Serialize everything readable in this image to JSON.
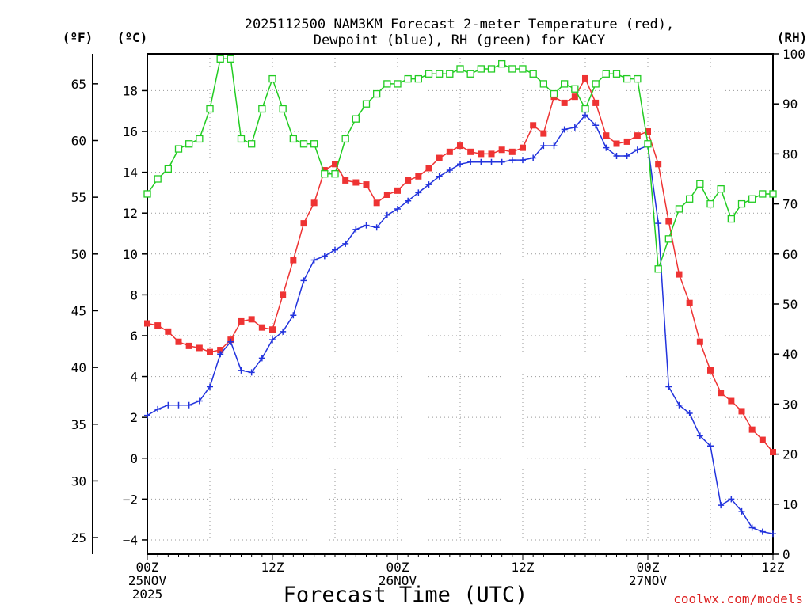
{
  "chart_data": {
    "type": "line",
    "title_line1": "2025112500 NAM3KM Forecast 2-meter Temperature (red),",
    "title_line2": "Dewpoint (blue), RH (green) for KACY",
    "unit_f": "(ºF)",
    "unit_c": "(ºC)",
    "unit_rh": "(RH)",
    "xlabel": "Forecast Time (UTC)",
    "credit": "coolwx.com/models",
    "xlim": [
      0,
      60
    ],
    "ylim_c": [
      -4.7,
      19.8
    ],
    "ylim_rh": [
      0,
      100
    ],
    "x_ticks": [
      {
        "x": 0,
        "lines": [
          "00Z",
          "25NOV",
          "2025"
        ]
      },
      {
        "x": 12,
        "lines": [
          "12Z"
        ]
      },
      {
        "x": 24,
        "lines": [
          "00Z",
          "26NOV"
        ]
      },
      {
        "x": 36,
        "lines": [
          "12Z"
        ]
      },
      {
        "x": 48,
        "lines": [
          "00Z",
          "27NOV"
        ]
      },
      {
        "x": 60,
        "lines": [
          "12Z"
        ]
      }
    ],
    "c_ticks": [
      -4,
      -2,
      0,
      2,
      4,
      6,
      8,
      10,
      12,
      14,
      16,
      18
    ],
    "f_ticks": [
      25,
      30,
      35,
      40,
      45,
      50,
      55,
      60,
      65
    ],
    "rh_ticks": [
      0,
      10,
      20,
      30,
      40,
      50,
      60,
      70,
      80,
      90,
      100
    ],
    "series": [
      {
        "name": "Temperature",
        "unit": "C",
        "color": "#ee3333",
        "marker": "filled-square",
        "x": [
          0,
          1,
          2,
          3,
          4,
          5,
          6,
          7,
          8,
          9,
          10,
          11,
          12,
          13,
          14,
          15,
          16,
          17,
          18,
          19,
          20,
          21,
          22,
          23,
          24,
          25,
          26,
          27,
          28,
          29,
          30,
          31,
          32,
          33,
          34,
          35,
          36,
          37,
          38,
          39,
          40,
          41,
          42,
          43,
          44,
          45,
          46,
          47,
          48,
          49,
          50,
          51,
          52,
          53,
          54,
          55,
          56,
          57,
          58,
          59,
          60
        ],
        "values": [
          6.6,
          6.5,
          6.2,
          5.7,
          5.5,
          5.4,
          5.2,
          5.3,
          5.8,
          6.7,
          6.8,
          6.4,
          6.3,
          8.0,
          9.7,
          11.5,
          12.5,
          14.1,
          14.4,
          13.6,
          13.5,
          13.4,
          12.5,
          12.9,
          13.1,
          13.6,
          13.8,
          14.2,
          14.7,
          15.0,
          15.3,
          15.0,
          14.9,
          14.9,
          15.1,
          15.0,
          15.2,
          16.3,
          15.9,
          17.7,
          17.4,
          17.7,
          18.6,
          17.4,
          15.8,
          15.4,
          15.5,
          15.8,
          16.0,
          14.4,
          11.6,
          9.0,
          7.6,
          5.7,
          4.3,
          3.2,
          2.8,
          2.3,
          1.4,
          0.9,
          0.3
        ]
      },
      {
        "name": "Dewpoint",
        "unit": "C",
        "color": "#2233dd",
        "marker": "plus",
        "x": [
          0,
          1,
          2,
          3,
          4,
          5,
          6,
          7,
          8,
          9,
          10,
          11,
          12,
          13,
          14,
          15,
          16,
          17,
          18,
          19,
          20,
          21,
          22,
          23,
          24,
          25,
          26,
          27,
          28,
          29,
          30,
          31,
          32,
          33,
          34,
          35,
          36,
          37,
          38,
          39,
          40,
          41,
          42,
          43,
          44,
          45,
          46,
          47,
          48,
          49,
          50,
          51,
          52,
          53,
          54,
          55,
          56,
          57,
          58,
          59,
          60
        ],
        "values": [
          2.1,
          2.4,
          2.6,
          2.6,
          2.6,
          2.8,
          3.5,
          5.1,
          5.7,
          4.3,
          4.2,
          4.9,
          5.8,
          6.2,
          7.0,
          8.7,
          9.7,
          9.9,
          10.2,
          10.5,
          11.2,
          11.4,
          11.3,
          11.9,
          12.2,
          12.6,
          13.0,
          13.4,
          13.8,
          14.1,
          14.4,
          14.5,
          14.5,
          14.5,
          14.5,
          14.6,
          14.6,
          14.7,
          15.3,
          15.3,
          16.1,
          16.2,
          16.8,
          16.3,
          15.2,
          14.8,
          14.8,
          15.1,
          15.3,
          11.5,
          3.5,
          2.6,
          2.2,
          1.1,
          0.6,
          -2.3,
          -2.0,
          -2.6,
          -3.4,
          -3.6,
          -3.7
        ]
      },
      {
        "name": "RH",
        "unit": "%",
        "color": "#22cc22",
        "marker": "open-square",
        "x": [
          0,
          1,
          2,
          3,
          4,
          5,
          6,
          7,
          8,
          9,
          10,
          11,
          12,
          13,
          14,
          15,
          16,
          17,
          18,
          19,
          20,
          21,
          22,
          23,
          24,
          25,
          26,
          27,
          28,
          29,
          30,
          31,
          32,
          33,
          34,
          35,
          36,
          37,
          38,
          39,
          40,
          41,
          42,
          43,
          44,
          45,
          46,
          47,
          48,
          49,
          50,
          51,
          52,
          53,
          54,
          55,
          56,
          57,
          58,
          59,
          60
        ],
        "values": [
          72,
          75,
          77,
          81,
          82,
          83,
          89,
          99,
          99,
          83,
          82,
          89,
          95,
          89,
          83,
          82,
          82,
          76,
          76,
          83,
          87,
          90,
          92,
          94,
          94,
          95,
          95,
          96,
          96,
          96,
          97,
          96,
          97,
          97,
          98,
          97,
          97,
          96,
          94,
          92,
          94,
          93,
          89,
          94,
          96,
          96,
          95,
          95,
          82,
          57,
          63,
          69,
          71,
          74,
          70,
          73,
          67,
          70,
          71,
          72,
          72
        ]
      }
    ]
  }
}
